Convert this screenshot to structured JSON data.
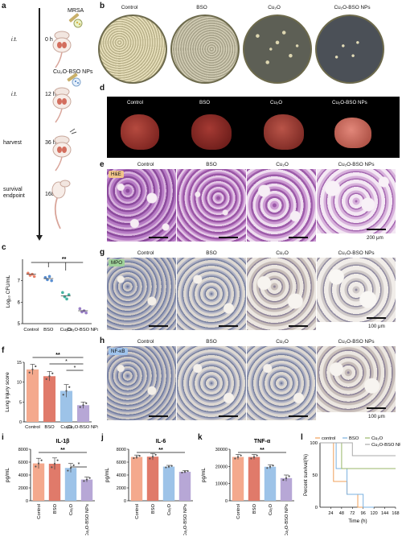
{
  "panels": {
    "a": "a",
    "b": "b",
    "c": "c",
    "d": "d",
    "e": "e",
    "f": "f",
    "g": "g",
    "h": "h",
    "i": "i",
    "j": "j",
    "k": "k",
    "l": "l"
  },
  "timeline": {
    "mrsa": "MRSA",
    "np": "Cu₂O-BSO NPs",
    "steps": [
      {
        "route": "i.t.",
        "time": "0 h"
      },
      {
        "route": "i.t.",
        "time": "12 h"
      },
      {
        "route": "harvest",
        "time": "36 h"
      },
      {
        "route": "survival\nendpoint",
        "time": "168 h"
      }
    ]
  },
  "groups": [
    "Control",
    "BSO",
    "Cu₂O",
    "Cu₂O-BSO NPs"
  ],
  "stains": {
    "he": "H&E",
    "mpo": "MPO",
    "nfkb": "NF-κB"
  },
  "scalebars": {
    "e": "200 μm",
    "g": "100 μm",
    "h": "100 μm"
  },
  "colors": {
    "control": "#f4a98d",
    "bso": "#e07a6a",
    "cu2o": "#9dc3e8",
    "np": "#b7a7d6",
    "dot_control": "#e8836b",
    "dot_bso": "#5a8fd1",
    "dot_cu2o": "#45b3a1",
    "dot_np": "#9a80c7",
    "surv_control": "#f0a05a",
    "surv_bso": "#7ab0e0",
    "surv_cu2o": "#9ab76a",
    "surv_np": "#aaaaaa"
  },
  "chart_data": [
    {
      "panel": "c",
      "type": "scatter",
      "ylabel": "Log₁₀ CFU/mL",
      "ylim": [
        5,
        8
      ],
      "yticks": [
        "5",
        "6",
        "7"
      ],
      "categories": [
        "Control",
        "BSO",
        "Cu₂O",
        "Cu₂O-BSO NPs"
      ],
      "means": [
        7.3,
        7.1,
        6.3,
        5.6
      ],
      "points": [
        [
          7.35,
          7.25,
          7.3,
          7.2
        ],
        [
          7.15,
          7.05,
          7.2,
          7.0
        ],
        [
          6.45,
          6.25,
          6.15,
          6.35
        ],
        [
          5.7,
          5.55,
          5.6,
          5.5
        ]
      ],
      "sig": "**"
    },
    {
      "panel": "f",
      "type": "bar",
      "ylabel": "Lung injury score",
      "ylim": [
        0,
        15
      ],
      "yticks": [
        "0",
        "5",
        "10",
        "15"
      ],
      "categories": [
        "Control",
        "BSO",
        "Cu₂O",
        "Cu₂O-BSO NPs"
      ],
      "values": [
        13.2,
        11.5,
        7.8,
        4.2
      ],
      "errors": [
        1.3,
        1.2,
        1.6,
        0.8
      ],
      "sig": [
        "**",
        "*",
        "*"
      ]
    },
    {
      "panel": "i",
      "type": "bar",
      "title": "IL-1β",
      "ylabel": "pg/mL",
      "ylim": [
        0,
        8000
      ],
      "yticks": [
        "0",
        "2000",
        "4000",
        "6000",
        "8000"
      ],
      "categories": [
        "Control",
        "BSO",
        "Cu₂O",
        "Cu₂O-BSO NPs"
      ],
      "values": [
        5800,
        5750,
        5100,
        3300
      ],
      "errors": [
        800,
        900,
        700,
        400
      ],
      "sig": [
        "**",
        "*"
      ]
    },
    {
      "panel": "j",
      "type": "bar",
      "title": "IL-6",
      "ylabel": "pg/mL",
      "ylim": [
        0,
        8000
      ],
      "yticks": [
        "0",
        "2000",
        "4000",
        "6000",
        "8000"
      ],
      "categories": [
        "Control",
        "BSO",
        "Cu₂O",
        "Cu₂O-BSO NPs"
      ],
      "values": [
        6800,
        6850,
        5300,
        4500
      ],
      "errors": [
        300,
        500,
        200,
        200
      ],
      "sig": [
        "**"
      ]
    },
    {
      "panel": "k",
      "type": "bar",
      "title": "TNF-α",
      "ylabel": "pg/mL",
      "ylim": [
        0,
        30000
      ],
      "yticks": [
        "0",
        "10000",
        "20000",
        "30000"
      ],
      "categories": [
        "Control",
        "BSO",
        "Cu₂O",
        "Cu₂O-BSO NPs"
      ],
      "values": [
        25500,
        25500,
        19800,
        13200
      ],
      "errors": [
        1500,
        1500,
        1200,
        1800
      ],
      "sig": [
        "**"
      ]
    },
    {
      "panel": "l",
      "type": "line",
      "ylabel": "Percent survival(%)",
      "xlabel": "Time (h)",
      "ylim": [
        0,
        100
      ],
      "yticks": [
        "0",
        "50",
        "100"
      ],
      "xticks": [
        "24",
        "48",
        "72",
        "96",
        "120",
        "144",
        "168"
      ],
      "legend": [
        "control",
        "BSO",
        "Cu₂O",
        "Cu₂O-BSO NPs"
      ],
      "series": [
        {
          "name": "control",
          "steps": [
            [
              0,
              100
            ],
            [
              30,
              100
            ],
            [
              30,
              40
            ],
            [
              60,
              40
            ],
            [
              60,
              20
            ],
            [
              84,
              20
            ],
            [
              84,
              0
            ],
            [
              96,
              0
            ]
          ]
        },
        {
          "name": "BSO",
          "steps": [
            [
              0,
              100
            ],
            [
              36,
              100
            ],
            [
              36,
              60
            ],
            [
              60,
              60
            ],
            [
              60,
              20
            ],
            [
              96,
              20
            ],
            [
              96,
              0
            ],
            [
              120,
              0
            ]
          ]
        },
        {
          "name": "Cu₂O",
          "steps": [
            [
              0,
              100
            ],
            [
              48,
              100
            ],
            [
              48,
              60
            ],
            [
              168,
              60
            ]
          ]
        },
        {
          "name": "Cu₂O-BSO NPs",
          "steps": [
            [
              0,
              100
            ],
            [
              72,
              100
            ],
            [
              72,
              80
            ],
            [
              168,
              80
            ]
          ]
        }
      ]
    }
  ]
}
